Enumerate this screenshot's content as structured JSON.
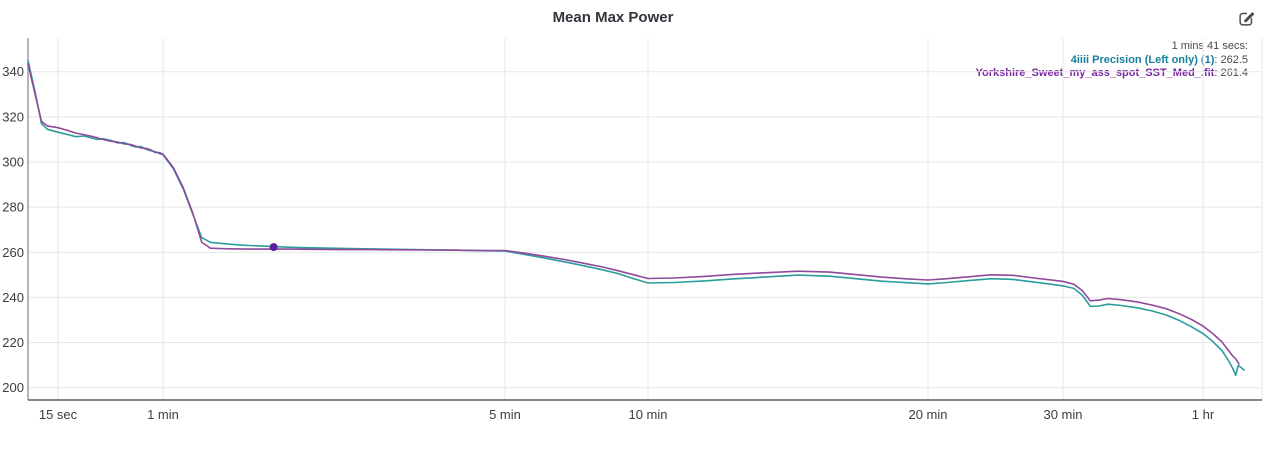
{
  "header": {
    "title": "Mean Max Power"
  },
  "icons": {
    "edit": "edit-chart-icon"
  },
  "tooltip": {
    "time": "1 mins 41 secs:",
    "entries": [
      {
        "label": "4iiii Precision (Left only) (1)",
        "value": ": 262.5",
        "color": "#157f9d"
      },
      {
        "label": "Yorkshire_Sweet_my_ass_spot_SST_Med_.fit",
        "value": ": 261.4",
        "color": "#7c24a0"
      }
    ]
  },
  "chart_data": {
    "type": "line",
    "title": "Mean Max Power",
    "xlabel": "",
    "ylabel": "",
    "x_axis": {
      "scale": "log-time-seconds",
      "ticks": [
        {
          "label": "15 sec",
          "t": 15
        },
        {
          "label": "1 min",
          "t": 60
        },
        {
          "label": "5 min",
          "t": 300
        },
        {
          "label": "10 min",
          "t": 600
        },
        {
          "label": "20 min",
          "t": 1200
        },
        {
          "label": "30 min",
          "t": 1800
        },
        {
          "label": "1 hr",
          "t": 3600
        }
      ],
      "range_seconds": [
        10,
        4600
      ]
    },
    "y_axis": {
      "ticks": [
        200,
        220,
        240,
        260,
        280,
        300,
        320,
        340
      ],
      "range": [
        196,
        355
      ]
    },
    "grid": true,
    "legend_position": "tooltip-top-right",
    "series": [
      {
        "name": "4iiii Precision (Left only) (1)",
        "color": "#2a9d9c",
        "points": [
          [
            10,
            345
          ],
          [
            11,
            331
          ],
          [
            12,
            317
          ],
          [
            13,
            314.5
          ],
          [
            15,
            313.2
          ],
          [
            17,
            312.2
          ],
          [
            19,
            311.2
          ],
          [
            21,
            311.5
          ],
          [
            23,
            310.8
          ],
          [
            25,
            310
          ],
          [
            27,
            310.3
          ],
          [
            30,
            309.6
          ],
          [
            33,
            308.4
          ],
          [
            36,
            308.6
          ],
          [
            39,
            307.4
          ],
          [
            42,
            306.6
          ],
          [
            45,
            306.8
          ],
          [
            48,
            305.6
          ],
          [
            51,
            305
          ],
          [
            54,
            304.6
          ],
          [
            57,
            303.8
          ],
          [
            60,
            303.2
          ],
          [
            63,
            297
          ],
          [
            66,
            288
          ],
          [
            69,
            277
          ],
          [
            72,
            266.5
          ],
          [
            75,
            264.4
          ],
          [
            80,
            263.8
          ],
          [
            85,
            263.3
          ],
          [
            90,
            263
          ],
          [
            101,
            262.5
          ],
          [
            110,
            262.2
          ],
          [
            120,
            262
          ],
          [
            140,
            261.7
          ],
          [
            160,
            261.5
          ],
          [
            180,
            261.3
          ],
          [
            210,
            261.1
          ],
          [
            240,
            260.9
          ],
          [
            270,
            260.7
          ],
          [
            300,
            260.5
          ],
          [
            330,
            259
          ],
          [
            360,
            257.6
          ],
          [
            400,
            255.8
          ],
          [
            440,
            254
          ],
          [
            480,
            252.3
          ],
          [
            520,
            250.5
          ],
          [
            560,
            248.3
          ],
          [
            600,
            246.4
          ],
          [
            640,
            246.6
          ],
          [
            690,
            247.3
          ],
          [
            740,
            248.2
          ],
          [
            800,
            249
          ],
          [
            870,
            249.9
          ],
          [
            940,
            249.4
          ],
          [
            1010,
            248.2
          ],
          [
            1070,
            247.2
          ],
          [
            1140,
            246.5
          ],
          [
            1200,
            246
          ],
          [
            1270,
            246.6
          ],
          [
            1350,
            247.4
          ],
          [
            1450,
            248.3
          ],
          [
            1550,
            248
          ],
          [
            1650,
            246.8
          ],
          [
            1730,
            245.9
          ],
          [
            1800,
            245.1
          ],
          [
            1900,
            244
          ],
          [
            1980,
            241
          ],
          [
            2060,
            236
          ],
          [
            2150,
            236.2
          ],
          [
            2250,
            237
          ],
          [
            2400,
            236.4
          ],
          [
            2600,
            235.4
          ],
          [
            2800,
            234
          ],
          [
            3000,
            232.2
          ],
          [
            3200,
            229.8
          ],
          [
            3400,
            227
          ],
          [
            3600,
            224
          ],
          [
            3800,
            220.5
          ],
          [
            4000,
            216.5
          ],
          [
            4150,
            212
          ],
          [
            4250,
            208.5
          ],
          [
            4320,
            205.5
          ],
          [
            4380,
            209.8
          ],
          [
            4450,
            209
          ],
          [
            4520,
            207.8
          ]
        ]
      },
      {
        "name": "Yorkshire_Sweet_my_ass_spot_SST_Med_.fit",
        "color": "#8e4a9b",
        "points": [
          [
            10,
            343.5
          ],
          [
            11,
            330
          ],
          [
            12,
            318
          ],
          [
            13,
            316
          ],
          [
            15,
            315.2
          ],
          [
            17,
            314
          ],
          [
            19,
            312.8
          ],
          [
            21,
            312.2
          ],
          [
            23,
            311.5
          ],
          [
            25,
            310.8
          ],
          [
            27,
            310
          ],
          [
            30,
            309.2
          ],
          [
            33,
            308.8
          ],
          [
            36,
            308
          ],
          [
            39,
            307.8
          ],
          [
            42,
            307
          ],
          [
            45,
            306.2
          ],
          [
            48,
            306
          ],
          [
            51,
            305.4
          ],
          [
            54,
            304.2
          ],
          [
            57,
            304.2
          ],
          [
            60,
            303.5
          ],
          [
            63,
            297.5
          ],
          [
            66,
            288.5
          ],
          [
            69,
            277.5
          ],
          [
            72,
            264.5
          ],
          [
            75,
            261.8
          ],
          [
            80,
            261.6
          ],
          [
            85,
            261.5
          ],
          [
            90,
            261.4
          ],
          [
            101,
            261.4
          ],
          [
            110,
            261.4
          ],
          [
            120,
            261.3
          ],
          [
            140,
            261.2
          ],
          [
            160,
            261.2
          ],
          [
            180,
            261.1
          ],
          [
            210,
            261
          ],
          [
            240,
            260.9
          ],
          [
            270,
            260.8
          ],
          [
            300,
            260.8
          ],
          [
            330,
            259.6
          ],
          [
            360,
            258.4
          ],
          [
            400,
            256.8
          ],
          [
            440,
            255.1
          ],
          [
            480,
            253.5
          ],
          [
            520,
            251.8
          ],
          [
            560,
            250
          ],
          [
            600,
            248.4
          ],
          [
            640,
            248.6
          ],
          [
            690,
            249.3
          ],
          [
            740,
            250.2
          ],
          [
            800,
            250.9
          ],
          [
            870,
            251.6
          ],
          [
            940,
            251.2
          ],
          [
            1010,
            250
          ],
          [
            1070,
            249
          ],
          [
            1140,
            248.2
          ],
          [
            1200,
            247.7
          ],
          [
            1270,
            248.3
          ],
          [
            1350,
            249.1
          ],
          [
            1450,
            250
          ],
          [
            1550,
            249.8
          ],
          [
            1650,
            248.6
          ],
          [
            1730,
            247.8
          ],
          [
            1800,
            247.1
          ],
          [
            1900,
            245.8
          ],
          [
            1980,
            243
          ],
          [
            2060,
            238.5
          ],
          [
            2150,
            238.8
          ],
          [
            2250,
            239.5
          ],
          [
            2400,
            239
          ],
          [
            2600,
            238
          ],
          [
            2800,
            236.6
          ],
          [
            3000,
            235
          ],
          [
            3200,
            232.8
          ],
          [
            3400,
            230.2
          ],
          [
            3600,
            227.3
          ],
          [
            3800,
            224
          ],
          [
            4000,
            220.3
          ],
          [
            4150,
            216.5
          ],
          [
            4250,
            214
          ],
          [
            4320,
            212.8
          ],
          [
            4400,
            210.5
          ]
        ]
      }
    ],
    "marker": {
      "t": 101,
      "value": 262.3,
      "color": "#5a1f9e"
    },
    "colors": {
      "grid": "#e7e7e7",
      "axis_y": "#8f8f8f",
      "axis_x": "#757575",
      "tick_text": "#3d3d3d"
    }
  }
}
